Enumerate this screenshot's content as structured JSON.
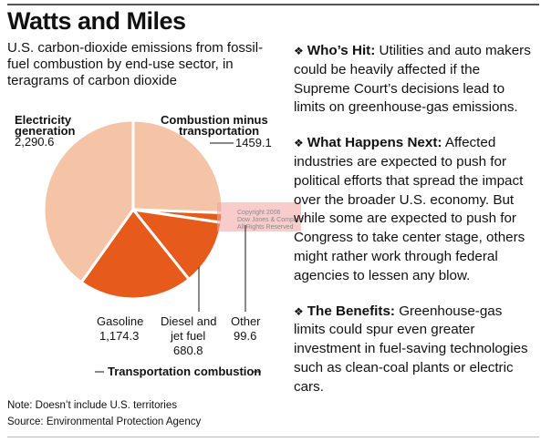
{
  "header": {
    "title": "Watts and Miles",
    "subtitle": "U.S. carbon-dioxide emissions from fossil-fuel combustion by end-use sector, in teragrams of carbon dioxide"
  },
  "chart_data": {
    "type": "pie",
    "title": "Watts and Miles",
    "subtitle": "U.S. carbon-dioxide emissions from fossil-fuel combustion by end-use sector, in teragrams of carbon dioxide",
    "labels": [
      "Combustion minus transportation",
      "Other",
      "Diesel and jet fuel",
      "Gasoline",
      "Electricity generation"
    ],
    "values": [
      1459.1,
      99.6,
      680.8,
      1174.3,
      2290.6
    ],
    "value_labels": [
      "1459.1",
      "99.6",
      "680.8",
      "1,174.3",
      "2,290.6"
    ],
    "colors": [
      "#f5c3a5",
      "#e65a1c",
      "#e65a1c",
      "#e65a1c",
      "#f5c3a5"
    ],
    "group_label": "Transportation combustion",
    "group_members": [
      "Other",
      "Diesel and jet fuel",
      "Gasoline"
    ]
  },
  "watermark": [
    "Copyright 2006",
    "Dow Jones & Company",
    "All Rights Reserved"
  ],
  "notes": {
    "note": "Note: Doesn’t include U.S. territories",
    "source": "Source: Environmental Protection Agency"
  },
  "sidebar": {
    "bullet_icon": "diamond-bullet-icon",
    "paragraphs": [
      {
        "heading": "Who’s Hit:",
        "text": " Utilities and auto makers could be heavily affected if the Supreme Court’s decisions lead to limits on greenhouse-gas emissions."
      },
      {
        "heading": "What Happens Next:",
        "text": " Affected industries are expected to push for political efforts that spread the impact over the broader U.S. economy. But while some are expected to push for Congress to take center stage, others might rather work through federal agencies to lessen any blow."
      },
      {
        "heading": "The Benefits:",
        "text": " Greenhouse-gas limits could spur even greater investment in fuel-saving technologies such as clean-coal plants or electric cars."
      }
    ]
  }
}
